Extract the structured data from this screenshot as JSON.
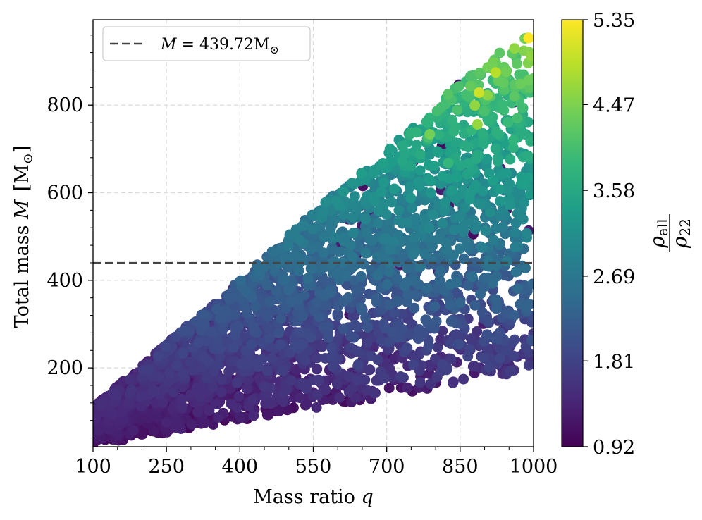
{
  "chart_data": {
    "type": "scatter",
    "xlabel_text": "Mass ratio ",
    "xlabel_symbol": "q",
    "ylabel_text": "Total mass ",
    "ylabel_symbol": "M",
    "ylabel_unit": "[M",
    "ylabel_unit_sub": "⊙",
    "ylabel_unit_close": "]",
    "xlim": [
      100,
      1000
    ],
    "ylim": [
      20,
      995
    ],
    "xticks": [
      "100",
      "250",
      "400",
      "550",
      "700",
      "850",
      "1000"
    ],
    "yticks": [
      "200",
      "400",
      "600",
      "800"
    ],
    "xtick_values": [
      100,
      250,
      400,
      550,
      700,
      850,
      1000
    ],
    "ytick_values": [
      200,
      400,
      600,
      800
    ],
    "grid": true,
    "hline": {
      "y": 439.72,
      "label_symbol": "M",
      "label_eq": " = 439.72M",
      "label_sub": "⊙",
      "color": "#444444"
    },
    "legend_position": "top-left",
    "colorbar": {
      "label_num": "ρ",
      "label_num_sub": "all",
      "label_den": "ρ",
      "label_den_sub": "22",
      "range": [
        0.92,
        5.35
      ],
      "ticks": [
        "0.92",
        "1.81",
        "2.69",
        "3.58",
        "4.47",
        "5.35"
      ],
      "tick_values": [
        0.92,
        1.81,
        2.69,
        3.58,
        4.47,
        5.35
      ],
      "colormap": "viridis"
    },
    "distribution": {
      "description_free": true,
      "lower_bound": [
        [
          100,
          25
        ],
        [
          250,
          50
        ],
        [
          400,
          80
        ],
        [
          550,
          105
        ],
        [
          700,
          130
        ],
        [
          850,
          160
        ],
        [
          1000,
          195
        ]
      ],
      "upper_bound": [
        [
          100,
          110
        ],
        [
          250,
          255
        ],
        [
          400,
          400
        ],
        [
          550,
          555
        ],
        [
          700,
          700
        ],
        [
          850,
          850
        ],
        [
          1000,
          985
        ]
      ],
      "value_low": 1.0,
      "value_high": 5.2,
      "n_points": 3200
    }
  },
  "colors": {
    "grid": "#d9d9d9",
    "axis": "#000000",
    "viridis": [
      "#440154",
      "#482878",
      "#3e4989",
      "#31688e",
      "#26828e",
      "#1f9e89",
      "#35b779",
      "#6ece58",
      "#b5de2b",
      "#fde725"
    ]
  }
}
